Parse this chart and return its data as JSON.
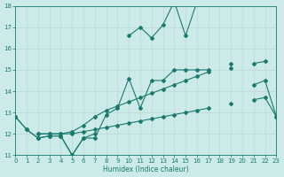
{
  "x": [
    0,
    1,
    2,
    3,
    4,
    5,
    6,
    7,
    8,
    9,
    10,
    11,
    12,
    13,
    14,
    15,
    16,
    17,
    18,
    19,
    20,
    21,
    22,
    23
  ],
  "line1": [
    12.8,
    12.2,
    11.8,
    11.9,
    11.9,
    11.0,
    11.8,
    12.0,
    null,
    null,
    16.6,
    17.0,
    16.5,
    17.1,
    18.2,
    16.6,
    18.2,
    null,
    null,
    null,
    null,
    null,
    null,
    null
  ],
  "line2": [
    12.8,
    12.2,
    11.8,
    11.9,
    11.9,
    11.0,
    11.8,
    11.8,
    12.9,
    13.2,
    14.6,
    13.2,
    14.5,
    14.5,
    15.0,
    15.0,
    15.0,
    15.0,
    null,
    15.3,
    null,
    14.3,
    14.5,
    12.8
  ],
  "line3": [
    12.8,
    null,
    12.0,
    12.0,
    12.0,
    12.1,
    12.4,
    12.8,
    13.1,
    13.3,
    13.5,
    13.7,
    13.9,
    14.1,
    14.3,
    14.5,
    14.7,
    14.9,
    null,
    15.1,
    null,
    15.3,
    15.4,
    null
  ],
  "line4": [
    12.8,
    null,
    12.0,
    12.0,
    12.0,
    12.0,
    12.1,
    12.2,
    12.3,
    12.4,
    12.5,
    12.6,
    12.7,
    12.8,
    12.9,
    13.0,
    13.1,
    13.2,
    null,
    13.4,
    null,
    13.6,
    13.7,
    12.8
  ],
  "line_color": "#1a7a6e",
  "bg_color": "#cceae8",
  "grid_minor_color": "#b8d8d6",
  "grid_major_color": "#c8e0de",
  "xlabel": "Humidex (Indice chaleur)",
  "ylim": [
    11,
    18
  ],
  "xlim": [
    0,
    23
  ],
  "yticks": [
    11,
    12,
    13,
    14,
    15,
    16,
    17,
    18
  ],
  "xticks": [
    0,
    1,
    2,
    3,
    4,
    5,
    6,
    7,
    8,
    9,
    10,
    11,
    12,
    13,
    14,
    15,
    16,
    17,
    18,
    19,
    20,
    21,
    22,
    23
  ]
}
